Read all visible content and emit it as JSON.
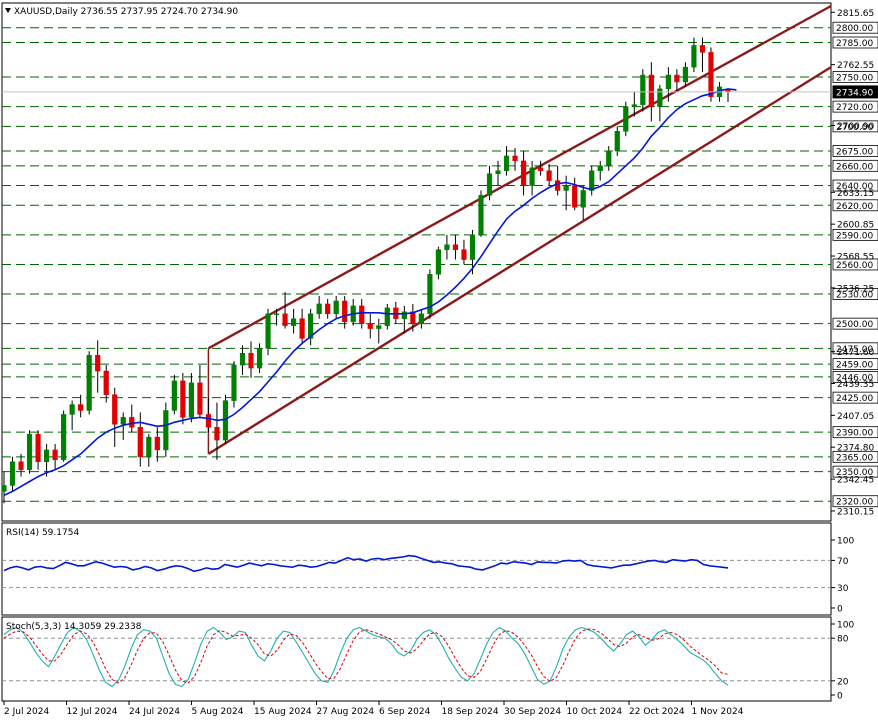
{
  "main_panel": {
    "header": "XAUUSD,Daily  2736.55 2737.95 2724.70 2734.90",
    "current_price": 2734.9,
    "current_price_label": "2734.90",
    "level_labels": [
      "2800.00",
      "2785.00",
      "2750.00",
      "2720.00",
      "2700.00",
      "2675.00",
      "2660.00",
      "2640.00",
      "2620.00",
      "2590.00",
      "2560.00",
      "2530.00",
      "2500.00",
      "2475.00",
      "2459.00",
      "2446.00",
      "2425.00",
      "2390.00",
      "2365.00",
      "2350.00",
      "2320.00"
    ],
    "axis_ticks": [
      "2815.65",
      "2762.55",
      "2700.90",
      "2633.15",
      "2600.85",
      "2568.55",
      "2536.25",
      "2471.60",
      "2439.35",
      "2407.05",
      "2374.80",
      "2342.45",
      "2310.15"
    ]
  },
  "rsi_panel": {
    "header": "RSI(14) 59.1754",
    "ticks": [
      "100",
      "70",
      "30",
      "0"
    ]
  },
  "stoch_panel": {
    "header": "Stoch(5,3,3) 14.3059 29.2338",
    "ticks": [
      "100",
      "80",
      "20",
      "0"
    ]
  },
  "x_axis_labels": [
    "2 Jul 2024",
    "12 Jul 2024",
    "24 Jul 2024",
    "5 Aug 2024",
    "15 Aug 2024",
    "27 Aug 2024",
    "6 Sep 2024",
    "18 Sep 2024",
    "30 Sep 2024",
    "10 Oct 2024",
    "22 Oct 2024",
    "1 Nov 2024"
  ],
  "chart_data": [
    {
      "type": "candlestick",
      "symbol": "XAUUSD",
      "timeframe": "Daily",
      "ylim": [
        2303,
        2822
      ],
      "ohlc": [
        [
          2330,
          2350,
          2318,
          2336
        ],
        [
          2336,
          2365,
          2330,
          2360
        ],
        [
          2360,
          2368,
          2345,
          2352
        ],
        [
          2352,
          2392,
          2348,
          2388
        ],
        [
          2388,
          2392,
          2352,
          2360
        ],
        [
          2360,
          2378,
          2345,
          2372
        ],
        [
          2372,
          2378,
          2352,
          2362
        ],
        [
          2362,
          2412,
          2360,
          2408
        ],
        [
          2408,
          2422,
          2392,
          2418
        ],
        [
          2418,
          2428,
          2405,
          2412
        ],
        [
          2412,
          2472,
          2408,
          2468
        ],
        [
          2468,
          2483,
          2430,
          2452
        ],
        [
          2452,
          2458,
          2420,
          2428
        ],
        [
          2428,
          2435,
          2375,
          2398
        ],
        [
          2398,
          2410,
          2382,
          2405
        ],
        [
          2405,
          2418,
          2390,
          2395
        ],
        [
          2395,
          2410,
          2355,
          2365
        ],
        [
          2365,
          2388,
          2355,
          2385
        ],
        [
          2385,
          2395,
          2360,
          2372
        ],
        [
          2372,
          2420,
          2365,
          2412
        ],
        [
          2412,
          2448,
          2408,
          2442
        ],
        [
          2442,
          2450,
          2398,
          2405
        ],
        [
          2405,
          2450,
          2400,
          2440
        ],
        [
          2440,
          2458,
          2405,
          2408
        ],
        [
          2408,
          2425,
          2390,
          2395
        ],
        [
          2395,
          2420,
          2362,
          2382
        ],
        [
          2382,
          2428,
          2378,
          2422
        ],
        [
          2422,
          2462,
          2415,
          2458
        ],
        [
          2458,
          2478,
          2448,
          2470
        ],
        [
          2470,
          2482,
          2445,
          2455
        ],
        [
          2455,
          2480,
          2450,
          2475
        ],
        [
          2475,
          2515,
          2468,
          2510
        ],
        [
          2510,
          2515,
          2498,
          2510
        ],
        [
          2510,
          2532,
          2495,
          2498
        ],
        [
          2498,
          2515,
          2490,
          2505
        ],
        [
          2505,
          2515,
          2480,
          2485
        ],
        [
          2485,
          2515,
          2478,
          2510
        ],
        [
          2510,
          2528,
          2505,
          2520
        ],
        [
          2520,
          2525,
          2505,
          2510
        ],
        [
          2510,
          2528,
          2505,
          2523
        ],
        [
          2523,
          2528,
          2495,
          2502
        ],
        [
          2502,
          2525,
          2498,
          2518
        ],
        [
          2518,
          2525,
          2495,
          2500
        ],
        [
          2500,
          2510,
          2485,
          2495
        ],
        [
          2495,
          2505,
          2480,
          2498
        ],
        [
          2498,
          2520,
          2494,
          2516
        ],
        [
          2516,
          2522,
          2500,
          2505
        ],
        [
          2505,
          2518,
          2490,
          2512
        ],
        [
          2512,
          2520,
          2492,
          2500
        ],
        [
          2500,
          2515,
          2495,
          2510
        ],
        [
          2510,
          2555,
          2505,
          2550
        ],
        [
          2550,
          2578,
          2545,
          2575
        ],
        [
          2575,
          2590,
          2565,
          2580
        ],
        [
          2580,
          2590,
          2565,
          2575
        ],
        [
          2575,
          2585,
          2560,
          2565
        ],
        [
          2565,
          2595,
          2550,
          2590
        ],
        [
          2590,
          2635,
          2588,
          2630
        ],
        [
          2630,
          2660,
          2625,
          2652
        ],
        [
          2652,
          2665,
          2640,
          2655
        ],
        [
          2655,
          2680,
          2650,
          2670
        ],
        [
          2670,
          2678,
          2655,
          2665
        ],
        [
          2665,
          2675,
          2630,
          2640
        ],
        [
          2640,
          2665,
          2630,
          2658
        ],
        [
          2658,
          2665,
          2650,
          2655
        ],
        [
          2655,
          2662,
          2640,
          2645
        ],
        [
          2645,
          2660,
          2630,
          2635
        ],
        [
          2635,
          2650,
          2615,
          2640
        ],
        [
          2640,
          2648,
          2615,
          2618
        ],
        [
          2618,
          2640,
          2605,
          2635
        ],
        [
          2635,
          2660,
          2630,
          2655
        ],
        [
          2655,
          2665,
          2645,
          2660
        ],
        [
          2660,
          2680,
          2655,
          2675
        ],
        [
          2675,
          2700,
          2670,
          2695
        ],
        [
          2695,
          2725,
          2690,
          2720
        ],
        [
          2720,
          2735,
          2710,
          2722
        ],
        [
          2722,
          2758,
          2715,
          2752
        ],
        [
          2752,
          2765,
          2705,
          2720
        ],
        [
          2720,
          2742,
          2705,
          2738
        ],
        [
          2738,
          2760,
          2725,
          2752
        ],
        [
          2752,
          2758,
          2735,
          2745
        ],
        [
          2745,
          2765,
          2740,
          2760
        ],
        [
          2760,
          2790,
          2755,
          2782
        ],
        [
          2782,
          2790,
          2755,
          2775
        ],
        [
          2775,
          2780,
          2725,
          2730
        ],
        [
          2730,
          2745,
          2725,
          2740
        ],
        [
          2736.55,
          2737.95,
          2724.7,
          2734.9
        ]
      ],
      "channel_upper": [
        [
          24,
          2475
        ],
        [
          106,
          2822
        ]
      ],
      "channel_lower": [
        [
          24,
          2368
        ],
        [
          106,
          2760
        ]
      ],
      "ma_line": [
        2326,
        2330,
        2335,
        2340,
        2345,
        2349,
        2352,
        2356,
        2362,
        2368,
        2376,
        2384,
        2390,
        2394,
        2397,
        2399,
        2400,
        2398,
        2396,
        2397,
        2400,
        2402,
        2404,
        2405,
        2404,
        2402,
        2403,
        2408,
        2415,
        2423,
        2431,
        2441,
        2451,
        2462,
        2472,
        2480,
        2487,
        2494,
        2500,
        2505,
        2508,
        2510,
        2511,
        2511,
        2511,
        2510,
        2510,
        2510,
        2511,
        2514,
        2517,
        2522,
        2529,
        2537,
        2546,
        2556,
        2568,
        2581,
        2594,
        2606,
        2614,
        2620,
        2627,
        2633,
        2638,
        2642,
        2643,
        2641,
        2638,
        2636,
        2639,
        2644,
        2652,
        2660,
        2668,
        2678,
        2690,
        2699,
        2709,
        2717,
        2723,
        2727,
        2731,
        2733,
        2736,
        2738,
        2737
      ]
    },
    {
      "type": "line",
      "name": "RSI(14)",
      "ylim": [
        0,
        100
      ],
      "levels": [
        70,
        30
      ],
      "values": [
        55,
        59,
        61,
        59,
        56,
        60,
        61,
        59,
        58,
        62,
        67,
        65,
        62,
        62,
        65,
        68,
        66,
        63,
        60,
        61,
        60,
        56,
        58,
        61,
        59,
        55,
        57,
        60,
        62,
        61,
        58,
        54,
        56,
        59,
        57,
        58,
        64,
        62,
        60,
        63,
        66,
        64,
        62,
        65,
        64,
        62,
        61,
        60,
        63,
        62,
        60,
        61,
        64,
        67,
        66,
        70,
        74,
        71,
        72,
        69,
        72,
        73,
        71,
        73,
        74,
        75,
        77,
        76,
        73,
        70,
        67,
        68,
        66,
        65,
        62,
        61,
        60,
        57,
        56,
        59,
        62,
        66,
        65,
        68,
        67,
        66,
        64,
        68,
        67,
        67,
        66,
        69,
        70,
        69,
        70,
        64,
        62,
        61,
        60,
        59,
        61,
        63,
        63,
        65,
        67,
        69,
        70,
        68,
        67,
        71,
        70,
        69,
        71,
        70,
        64,
        62,
        61,
        60,
        59
      ]
    },
    {
      "type": "line",
      "name": "Stoch(5,3,3)",
      "ylim": [
        0,
        100
      ],
      "levels": [
        80,
        20
      ],
      "main_values": [
        85,
        92,
        95,
        88,
        75,
        60,
        48,
        40,
        55,
        72,
        88,
        95,
        90,
        78,
        58,
        35,
        18,
        12,
        20,
        40,
        65,
        85,
        92,
        90,
        80,
        55,
        30,
        15,
        12,
        22,
        45,
        72,
        90,
        95,
        88,
        78,
        82,
        90,
        88,
        70,
        55,
        48,
        62,
        80,
        90,
        88,
        75,
        60,
        45,
        30,
        20,
        18,
        35,
        60,
        80,
        92,
        95,
        90,
        85,
        82,
        80,
        72,
        60,
        55,
        62,
        78,
        88,
        92,
        85,
        70,
        52,
        38,
        25,
        20,
        30,
        50,
        72,
        88,
        95,
        90,
        80,
        72,
        58,
        40,
        22,
        15,
        20,
        40,
        65,
        82,
        92,
        95,
        92,
        88,
        80,
        70,
        62,
        72,
        85,
        90,
        82,
        70,
        78,
        88,
        92,
        85,
        78,
        70,
        60,
        55,
        50,
        42,
        30,
        20,
        14
      ],
      "signal_values": [
        80,
        86,
        90,
        89,
        82,
        70,
        58,
        48,
        48,
        58,
        72,
        85,
        90,
        86,
        75,
        57,
        37,
        22,
        17,
        24,
        42,
        63,
        80,
        88,
        87,
        75,
        56,
        35,
        20,
        17,
        26,
        46,
        69,
        85,
        91,
        88,
        83,
        84,
        86,
        80,
        71,
        58,
        55,
        63,
        77,
        86,
        84,
        74,
        60,
        45,
        33,
        23,
        24,
        38,
        58,
        77,
        89,
        92,
        89,
        86,
        82,
        78,
        71,
        62,
        59,
        65,
        76,
        86,
        88,
        82,
        69,
        53,
        38,
        27,
        25,
        33,
        51,
        70,
        85,
        91,
        88,
        81,
        70,
        57,
        40,
        26,
        19,
        25,
        42,
        62,
        80,
        90,
        93,
        92,
        87,
        80,
        71,
        68,
        73,
        82,
        85,
        81,
        77,
        79,
        86,
        88,
        85,
        78,
        69,
        62,
        55,
        49,
        41,
        31,
        29
      ]
    }
  ]
}
